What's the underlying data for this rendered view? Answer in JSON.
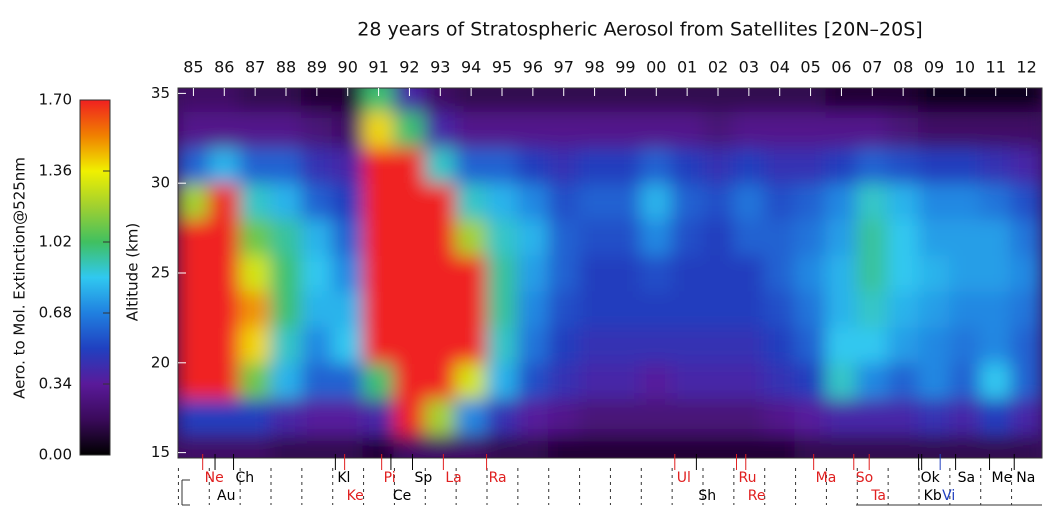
{
  "chart_data": {
    "type": "heatmap",
    "title": "28 years of Stratospheric Aerosol from Satellites [20N–20S]",
    "ylabel": "Altitude (km)",
    "colorbar_label": "Aero. to Mol. Extinction@525nm",
    "xlim": [
      1984.5,
      2012.5
    ],
    "xticks": [
      {
        "value": 1985,
        "label": "85"
      },
      {
        "value": 1986,
        "label": "86"
      },
      {
        "value": 1987,
        "label": "87"
      },
      {
        "value": 1988,
        "label": "88"
      },
      {
        "value": 1989,
        "label": "89"
      },
      {
        "value": 1990,
        "label": "90"
      },
      {
        "value": 1991,
        "label": "91"
      },
      {
        "value": 1992,
        "label": "92"
      },
      {
        "value": 1993,
        "label": "93"
      },
      {
        "value": 1994,
        "label": "94"
      },
      {
        "value": 1995,
        "label": "95"
      },
      {
        "value": 1996,
        "label": "96"
      },
      {
        "value": 1997,
        "label": "97"
      },
      {
        "value": 1998,
        "label": "98"
      },
      {
        "value": 1999,
        "label": "99"
      },
      {
        "value": 2000,
        "label": "00"
      },
      {
        "value": 2001,
        "label": "01"
      },
      {
        "value": 2002,
        "label": "02"
      },
      {
        "value": 2003,
        "label": "03"
      },
      {
        "value": 2004,
        "label": "04"
      },
      {
        "value": 2005,
        "label": "05"
      },
      {
        "value": 2006,
        "label": "06"
      },
      {
        "value": 2007,
        "label": "07"
      },
      {
        "value": 2008,
        "label": "08"
      },
      {
        "value": 2009,
        "label": "09"
      },
      {
        "value": 2010,
        "label": "10"
      },
      {
        "value": 2011,
        "label": "11"
      },
      {
        "value": 2012,
        "label": "12"
      }
    ],
    "ylim": [
      14.7,
      35.3
    ],
    "yticks": [
      15,
      20,
      25,
      30,
      35
    ],
    "clim": [
      0,
      1.7
    ],
    "cticks": [
      {
        "value": 1.7,
        "label": "1.70"
      },
      {
        "value": 1.36,
        "label": "1.36"
      },
      {
        "value": 1.02,
        "label": "1.02"
      },
      {
        "value": 0.68,
        "label": "0.68"
      },
      {
        "value": 0.34,
        "label": "0.34"
      },
      {
        "value": 0,
        "label": "0.00"
      }
    ],
    "colormap": [
      "#000000",
      "#3a0a5a",
      "#5a1a9a",
      "#2040c0",
      "#2080e0",
      "#30c8f0",
      "#40c060",
      "#a0d030",
      "#f0f000",
      "#f08000",
      "#f02020"
    ],
    "x": [
      1985,
      1986,
      1987,
      1988,
      1989,
      1990,
      1991,
      1992,
      1993,
      1994,
      1995,
      1996,
      1997,
      1998,
      1999,
      2000,
      2001,
      2002,
      2003,
      2004,
      2005,
      2006,
      2007,
      2008,
      2009,
      2010,
      2011,
      2012
    ],
    "y": [
      15,
      17,
      19,
      21,
      23,
      25,
      27,
      29,
      31,
      33,
      35
    ],
    "z": [
      [
        0.2,
        0.5,
        1.7,
        1.7,
        1.7,
        1.7,
        1.7,
        1.2,
        0.6,
        0.3,
        0.2
      ],
      [
        0.2,
        0.5,
        1.7,
        1.7,
        1.7,
        1.7,
        1.7,
        1.7,
        0.8,
        0.3,
        0.2
      ],
      [
        0.2,
        0.5,
        1.1,
        1.4,
        1.5,
        1.3,
        1.1,
        0.9,
        0.6,
        0.3,
        0.15
      ],
      [
        0.15,
        0.4,
        0.8,
        0.9,
        1.0,
        1.0,
        0.95,
        0.8,
        0.6,
        0.3,
        0.15
      ],
      [
        0.15,
        0.35,
        0.6,
        0.7,
        0.8,
        0.85,
        0.8,
        0.6,
        0.45,
        0.25,
        0.1
      ],
      [
        0.15,
        0.35,
        0.6,
        0.85,
        0.8,
        0.7,
        0.6,
        0.5,
        0.4,
        0.2,
        0.1
      ],
      [
        0.1,
        0.4,
        1.0,
        1.7,
        1.7,
        1.7,
        1.7,
        1.7,
        1.7,
        1.4,
        1.0
      ],
      [
        0.2,
        1.7,
        1.7,
        1.7,
        1.7,
        1.7,
        1.7,
        1.7,
        1.7,
        1.0,
        0.4
      ],
      [
        0.2,
        1.2,
        1.7,
        1.7,
        1.7,
        1.7,
        1.7,
        1.7,
        0.9,
        0.4,
        0.2
      ],
      [
        0.2,
        0.7,
        1.3,
        1.7,
        1.7,
        1.7,
        1.2,
        0.9,
        0.6,
        0.3,
        0.15
      ],
      [
        0.15,
        0.45,
        0.8,
        0.9,
        0.95,
        0.95,
        0.9,
        0.8,
        0.6,
        0.3,
        0.15
      ],
      [
        0.15,
        0.35,
        0.55,
        0.65,
        0.7,
        0.75,
        0.8,
        0.7,
        0.5,
        0.3,
        0.15
      ],
      [
        0.1,
        0.3,
        0.45,
        0.5,
        0.55,
        0.6,
        0.6,
        0.55,
        0.45,
        0.3,
        0.15
      ],
      [
        0.1,
        0.25,
        0.4,
        0.45,
        0.5,
        0.5,
        0.55,
        0.6,
        0.5,
        0.3,
        0.15
      ],
      [
        0.1,
        0.25,
        0.4,
        0.45,
        0.5,
        0.5,
        0.55,
        0.6,
        0.5,
        0.3,
        0.15
      ],
      [
        0.1,
        0.25,
        0.35,
        0.45,
        0.5,
        0.55,
        0.7,
        0.8,
        0.6,
        0.3,
        0.15
      ],
      [
        0.1,
        0.25,
        0.4,
        0.45,
        0.5,
        0.5,
        0.55,
        0.6,
        0.5,
        0.3,
        0.15
      ],
      [
        0.1,
        0.25,
        0.4,
        0.45,
        0.5,
        0.5,
        0.5,
        0.55,
        0.45,
        0.25,
        0.15
      ],
      [
        0.1,
        0.25,
        0.4,
        0.45,
        0.5,
        0.5,
        0.6,
        0.65,
        0.5,
        0.3,
        0.15
      ],
      [
        0.1,
        0.3,
        0.45,
        0.5,
        0.55,
        0.6,
        0.6,
        0.55,
        0.45,
        0.3,
        0.15
      ],
      [
        0.15,
        0.35,
        0.5,
        0.6,
        0.65,
        0.7,
        0.65,
        0.6,
        0.45,
        0.3,
        0.15
      ],
      [
        0.15,
        0.4,
        0.9,
        0.85,
        0.8,
        0.8,
        0.75,
        0.7,
        0.5,
        0.3,
        0.1
      ],
      [
        0.15,
        0.4,
        0.7,
        0.85,
        0.9,
        0.95,
        0.95,
        0.9,
        0.6,
        0.3,
        0.1
      ],
      [
        0.15,
        0.4,
        0.6,
        0.75,
        0.8,
        0.85,
        0.85,
        0.8,
        0.55,
        0.25,
        0.1
      ],
      [
        0.15,
        0.45,
        0.7,
        0.7,
        0.75,
        0.8,
        0.75,
        0.7,
        0.5,
        0.2,
        0.05
      ],
      [
        0.15,
        0.4,
        0.6,
        0.65,
        0.7,
        0.75,
        0.75,
        0.7,
        0.5,
        0.2,
        0.05
      ],
      [
        0.15,
        0.5,
        0.85,
        0.7,
        0.7,
        0.75,
        0.75,
        0.65,
        0.45,
        0.2,
        0.05
      ],
      [
        0.15,
        0.4,
        0.6,
        0.6,
        0.65,
        0.7,
        0.65,
        0.55,
        0.4,
        0.2,
        0.05
      ]
    ],
    "annotations": [
      {
        "text": "Ne",
        "x": 1985.3,
        "color": "#e02020"
      },
      {
        "text": "Au",
        "x": 1985.7,
        "color": "#000000"
      },
      {
        "text": "Ch",
        "x": 1986.3,
        "color": "#000000"
      },
      {
        "text": "Kl",
        "x": 1989.6,
        "color": "#000000"
      },
      {
        "text": "Ke",
        "x": 1989.9,
        "color": "#e02020"
      },
      {
        "text": "Pi",
        "x": 1991.1,
        "color": "#e02020"
      },
      {
        "text": "Ce",
        "x": 1991.4,
        "color": "#000000"
      },
      {
        "text": "Sp",
        "x": 1992.1,
        "color": "#000000"
      },
      {
        "text": "La",
        "x": 1993.1,
        "color": "#e02020"
      },
      {
        "text": "Ra",
        "x": 1994.5,
        "color": "#e02020"
      },
      {
        "text": "Ul",
        "x": 2000.6,
        "color": "#e02020"
      },
      {
        "text": "Sh",
        "x": 2001.3,
        "color": "#000000"
      },
      {
        "text": "Ru",
        "x": 2002.6,
        "color": "#e02020"
      },
      {
        "text": "Re",
        "x": 2002.9,
        "color": "#e02020"
      },
      {
        "text": "Ma",
        "x": 2005.1,
        "color": "#e02020"
      },
      {
        "text": "So",
        "x": 2006.4,
        "color": "#e02020"
      },
      {
        "text": "Ta",
        "x": 2006.9,
        "color": "#e02020"
      },
      {
        "text": "Ok",
        "x": 2008.5,
        "color": "#000000"
      },
      {
        "text": "Kb",
        "x": 2008.6,
        "color": "#000000"
      },
      {
        "text": "Vi",
        "x": 2009.2,
        "color": "#2040c0"
      },
      {
        "text": "Sa",
        "x": 2009.7,
        "color": "#000000"
      },
      {
        "text": "Me",
        "x": 2010.8,
        "color": "#000000"
      },
      {
        "text": "Na",
        "x": 2011.6,
        "color": "#000000"
      }
    ]
  }
}
